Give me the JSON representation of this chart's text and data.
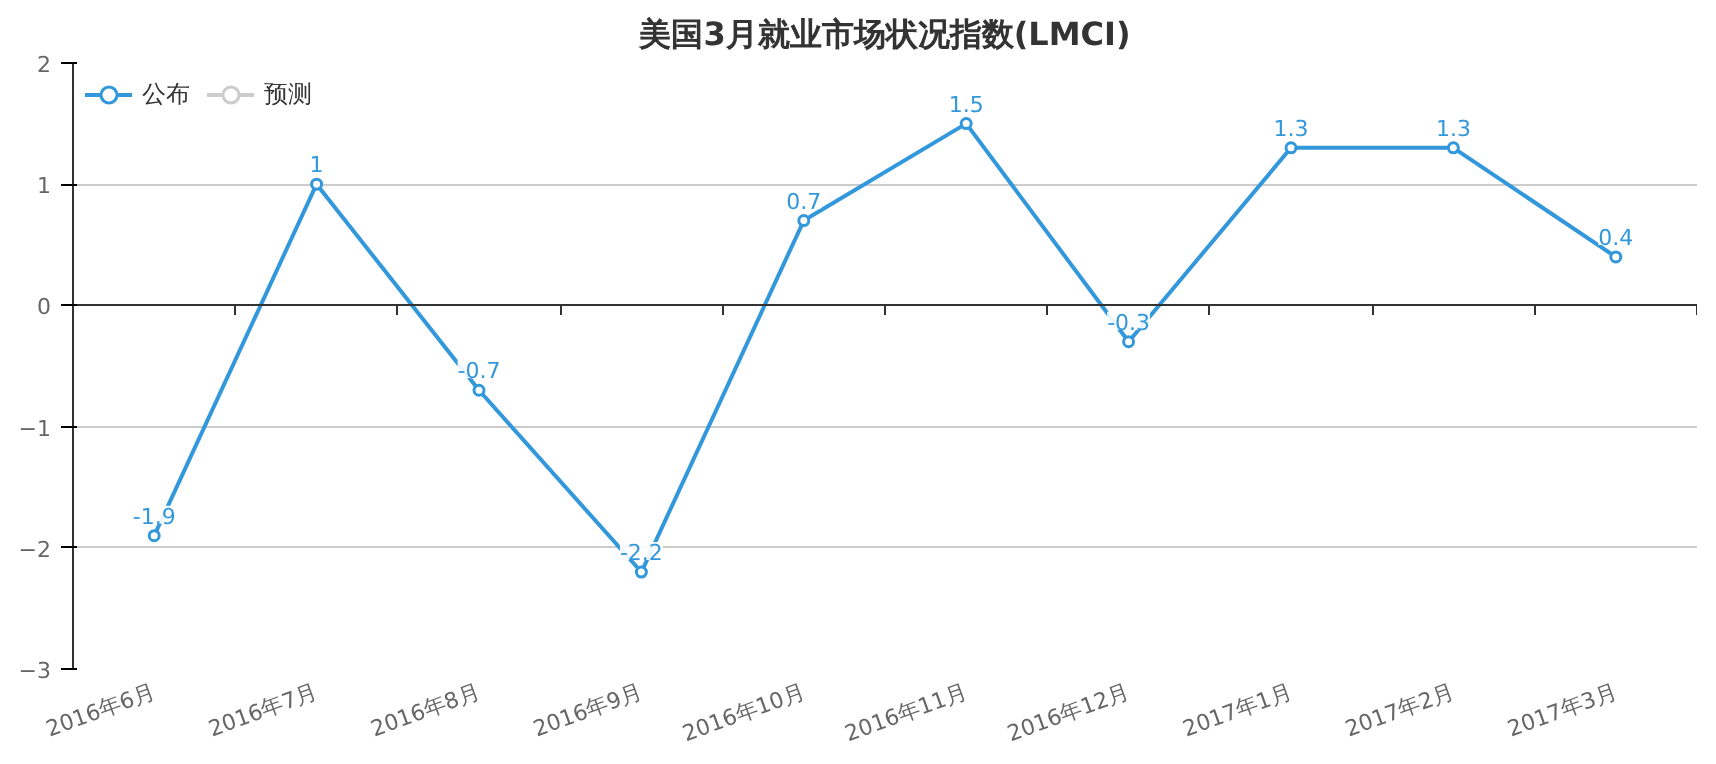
{
  "chart_data": {
    "type": "line",
    "title": "美国3月就业市场状况指数(LMCI)",
    "categories": [
      "2016年6月",
      "2016年7月",
      "2016年8月",
      "2016年9月",
      "2016年10月",
      "2016年11月",
      "2016年12月",
      "2017年1月",
      "2017年2月",
      "2017年3月"
    ],
    "series": [
      {
        "name": "公布",
        "color": "#3398db",
        "values": [
          -1.9,
          1,
          -0.7,
          -2.2,
          0.7,
          1.5,
          -0.3,
          1.3,
          1.3,
          0.4
        ]
      },
      {
        "name": "预测",
        "color": "#cccccc",
        "values": [
          null,
          null,
          null,
          null,
          null,
          null,
          null,
          null,
          null,
          null
        ]
      }
    ],
    "ylim": [
      -3,
      2
    ],
    "yticks": [
      -3,
      -2,
      -1,
      0,
      1,
      2
    ],
    "grid": "y",
    "legend": "top left",
    "marker": "circle",
    "line_style": "solid",
    "data_labels": true
  }
}
